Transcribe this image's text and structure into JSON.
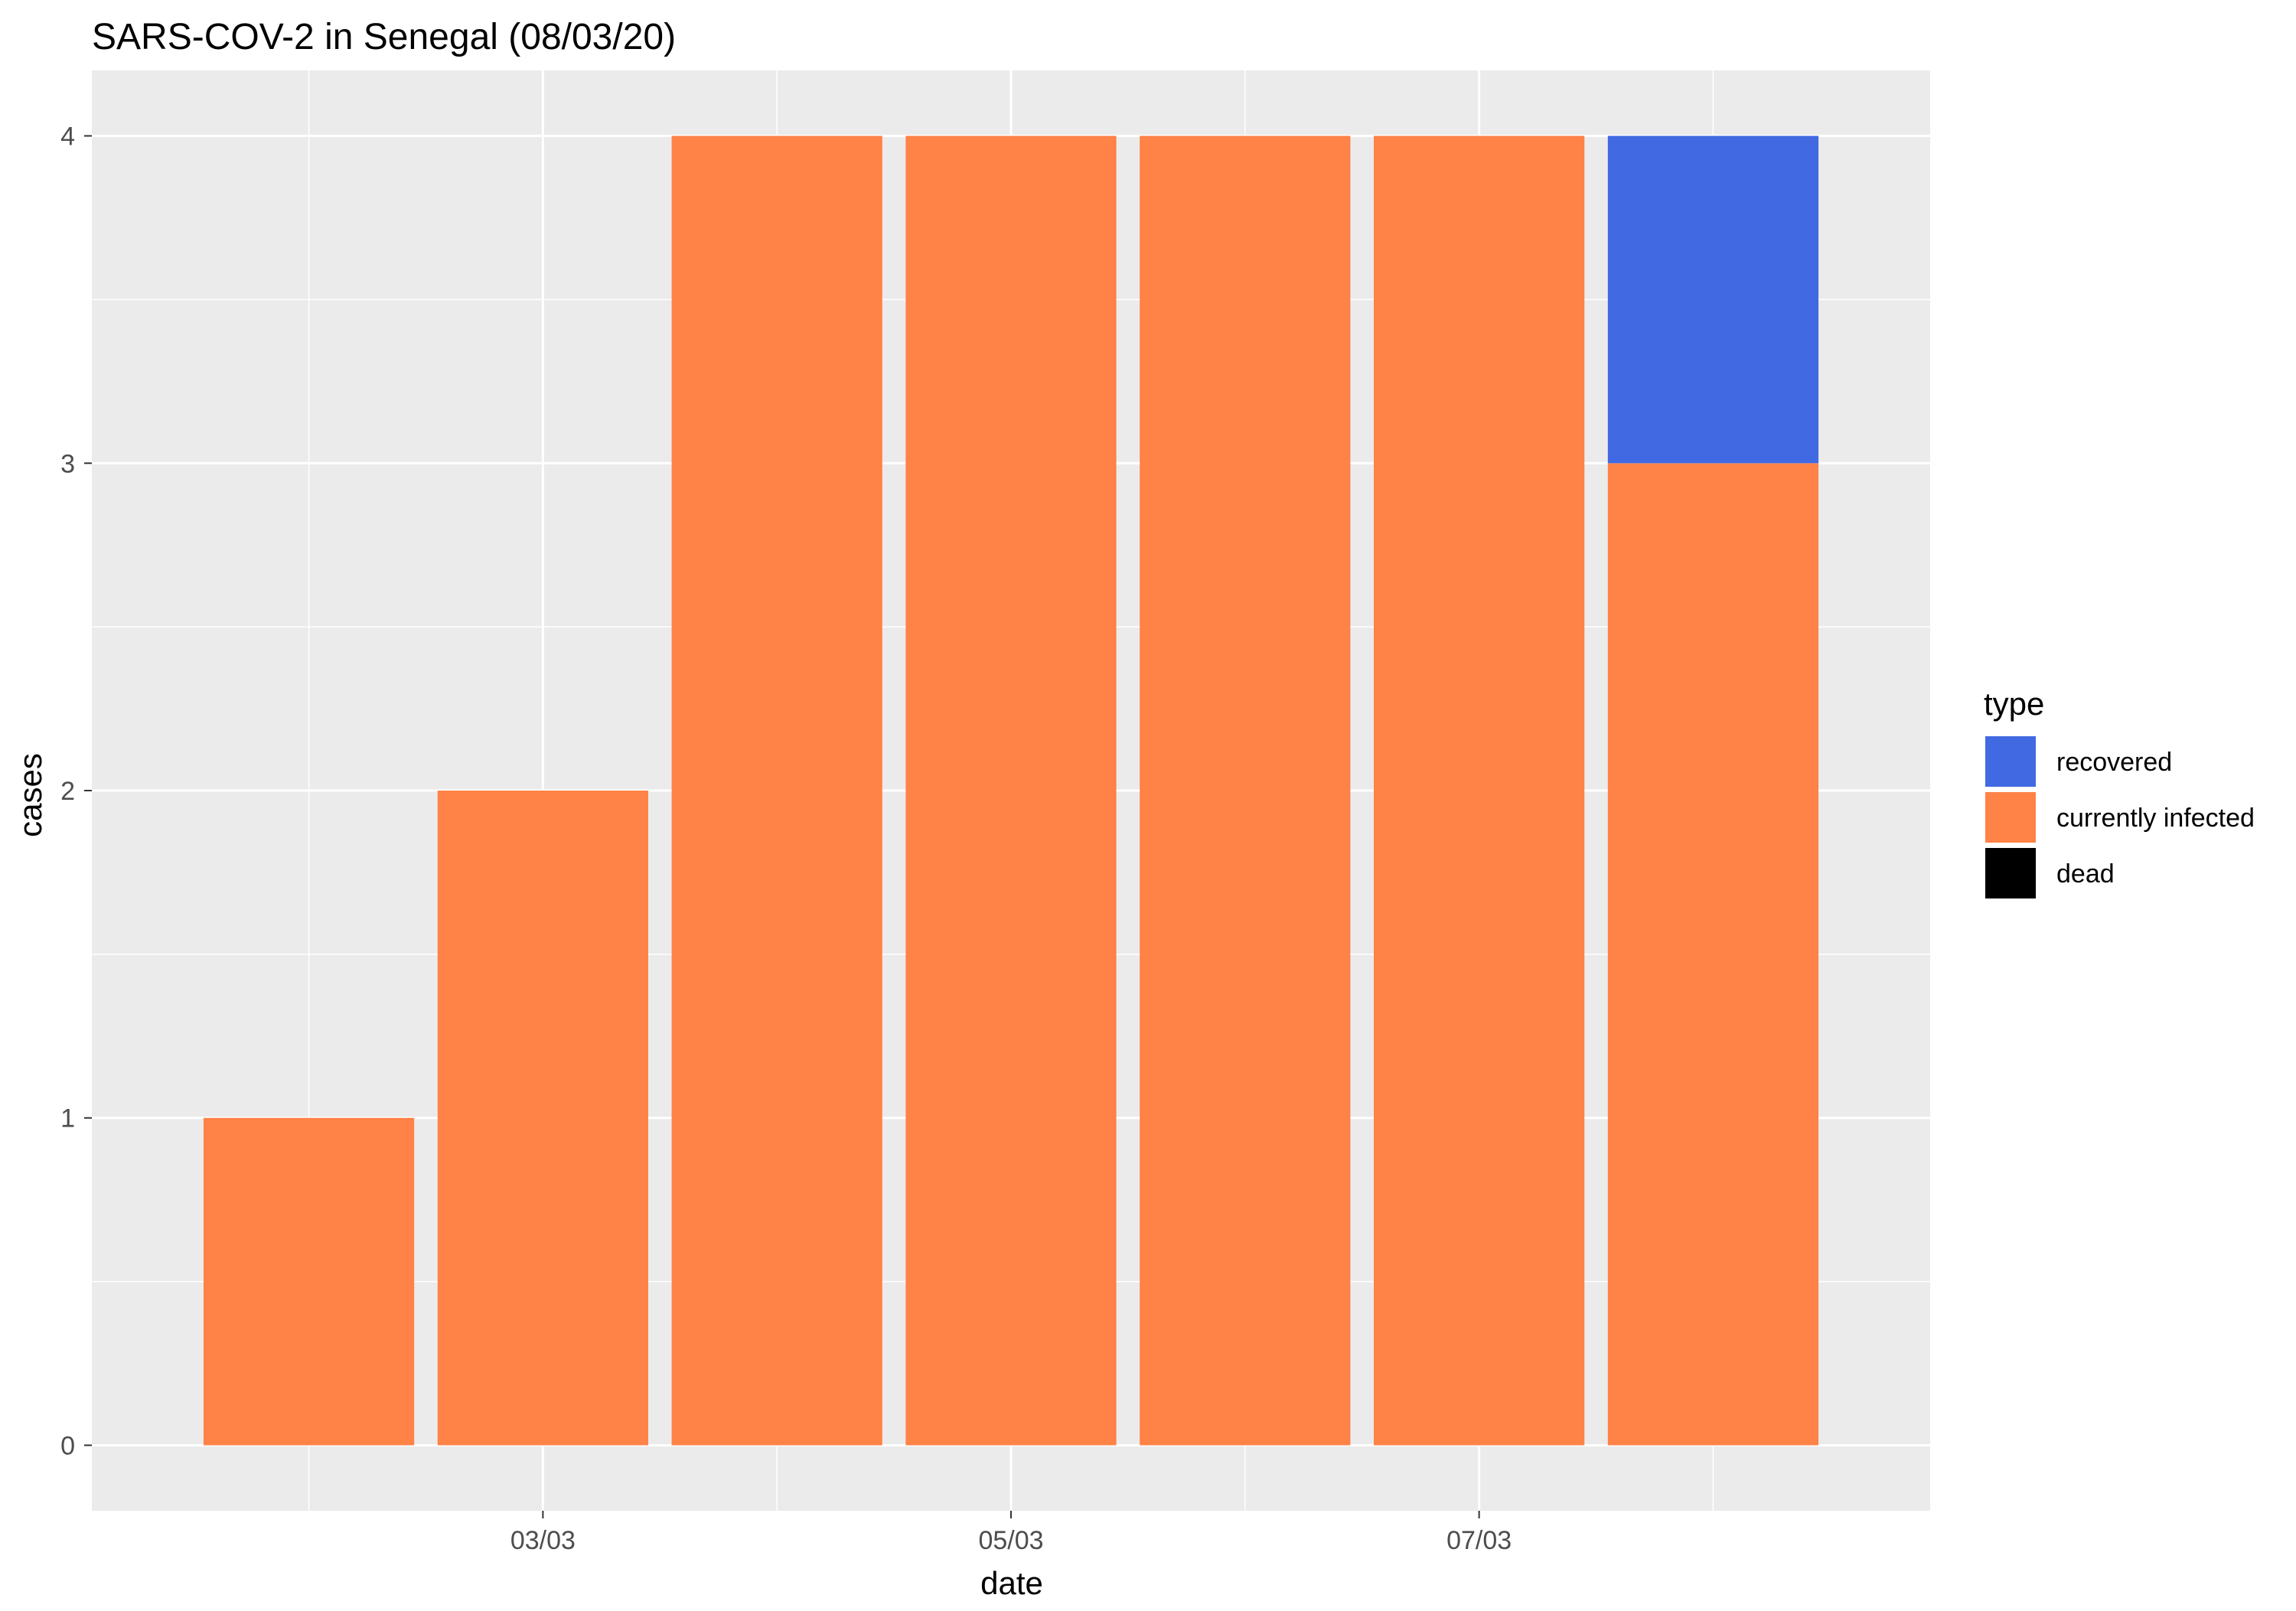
{
  "chart_data": {
    "type": "bar",
    "stacked": true,
    "title": "SARS-COV-2 in Senegal (08/03/20)",
    "xlabel": "date",
    "ylabel": "cases",
    "x": [
      "2020-03-02",
      "2020-03-03",
      "2020-03-04",
      "2020-03-05",
      "2020-03-06",
      "2020-03-07",
      "2020-03-08"
    ],
    "xticks": [
      {
        "value": "2020-03-03",
        "label": "03/03"
      },
      {
        "value": "2020-03-05",
        "label": "05/03"
      },
      {
        "value": "2020-03-07",
        "label": "07/03"
      }
    ],
    "yticks": [
      0,
      1,
      2,
      3,
      4
    ],
    "ylim": [
      -0.2,
      4.2
    ],
    "series": [
      {
        "name": "dead",
        "color": "#000000",
        "values": [
          0,
          0,
          0,
          0,
          0,
          0,
          0
        ]
      },
      {
        "name": "currently infected",
        "color": "#ff8247",
        "values": [
          1,
          2,
          4,
          4,
          4,
          4,
          3
        ]
      },
      {
        "name": "recovered",
        "color": "#4169e1",
        "values": [
          0,
          0,
          0,
          0,
          0,
          0,
          1
        ]
      }
    ],
    "legend": {
      "title": "type",
      "position": "right",
      "entries": [
        {
          "label": "recovered",
          "color": "#4169e1"
        },
        {
          "label": "currently infected",
          "color": "#ff8247"
        },
        {
          "label": "dead",
          "color": "#000000"
        }
      ]
    },
    "grid": true,
    "panel_background": "#ebebeb",
    "grid_color": "#ffffff"
  }
}
